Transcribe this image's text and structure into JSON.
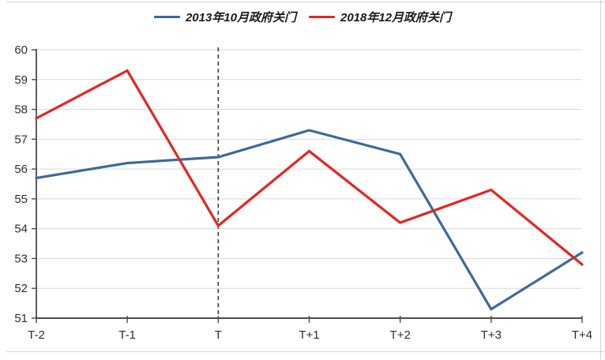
{
  "figure": {
    "background": "#ffffff",
    "frame_line_color": "#d7d7d7"
  },
  "chart_data": {
    "type": "line",
    "title": "",
    "xlabel": "",
    "ylabel": "",
    "categories": [
      "T-2",
      "T-1",
      "T",
      "T+1",
      "T+2",
      "T+3",
      "T+4"
    ],
    "series": [
      {
        "name": "2013年10月政府关门",
        "color": "#3c6a9c",
        "values": [
          55.7,
          56.2,
          56.4,
          57.3,
          56.5,
          51.3,
          53.2
        ]
      },
      {
        "name": "2018年12月政府关门",
        "color": "#e42521",
        "values": [
          57.7,
          59.3,
          54.1,
          56.6,
          54.2,
          55.3,
          52.8
        ]
      }
    ],
    "ylim": [
      51,
      60
    ],
    "yticks": [
      51,
      52,
      53,
      54,
      55,
      56,
      57,
      58,
      59,
      60
    ],
    "grid": "horizontal",
    "gridline_color": "#dadada",
    "axis_color": "#4d4d4d",
    "tick_label_color": "#2e2e2e",
    "legend_position": "top",
    "line_width": 3.2,
    "annotation": {
      "type": "vertical-dashed-line",
      "at_category": "T",
      "color": "#3a3a3a"
    }
  }
}
